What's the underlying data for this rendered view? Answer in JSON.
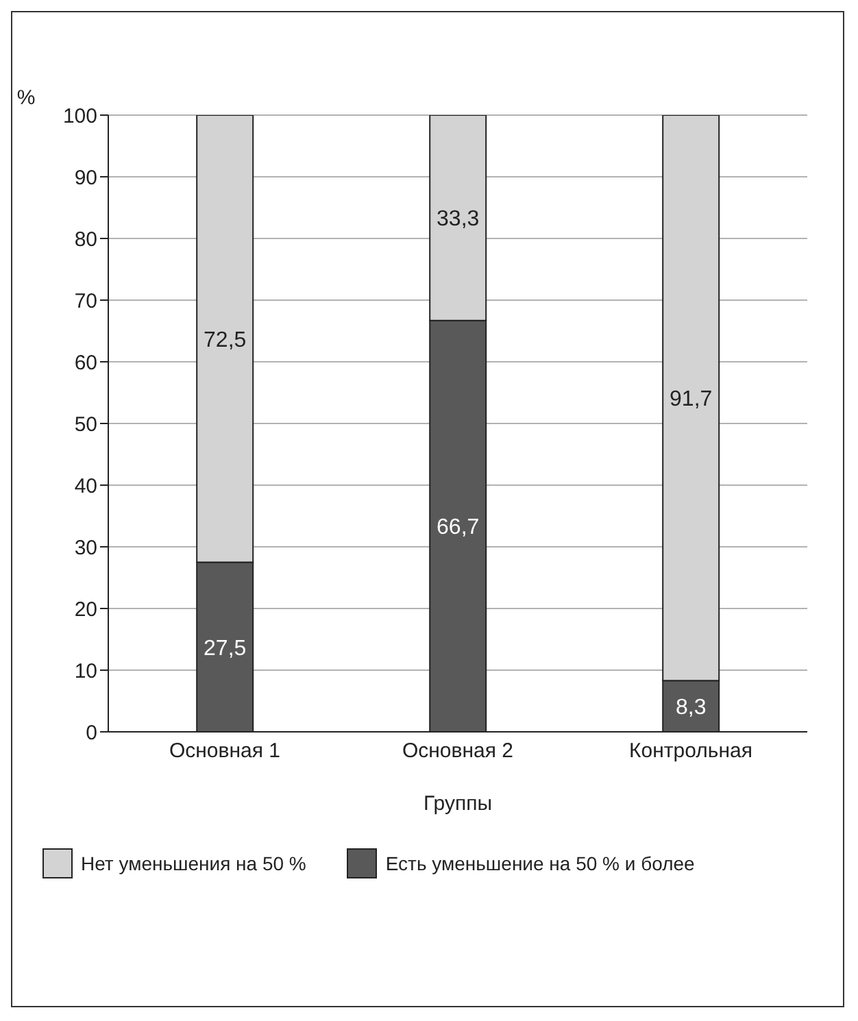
{
  "chart_data": {
    "type": "bar",
    "stacked": true,
    "xlabel": "Группы",
    "ylabel": "%",
    "categories": [
      "Основная 1",
      "Основная 2",
      "Контрольная"
    ],
    "series": [
      {
        "name": "Есть уменьшение на 50 % и более",
        "color": "#595959",
        "values": [
          27.5,
          66.7,
          8.3
        ],
        "value_labels": [
          "27,5",
          "66,7",
          "8,3"
        ]
      },
      {
        "name": "Нет уменьшения на 50 %",
        "color": "#d3d3d3",
        "values": [
          72.5,
          33.3,
          91.7
        ],
        "value_labels": [
          "72,5",
          "33,3",
          "91,7"
        ]
      }
    ],
    "ylim": [
      0,
      100
    ],
    "yticks": [
      0,
      10,
      20,
      30,
      40,
      50,
      60,
      70,
      80,
      90,
      100
    ],
    "grid": "y",
    "legend": "bottom"
  }
}
